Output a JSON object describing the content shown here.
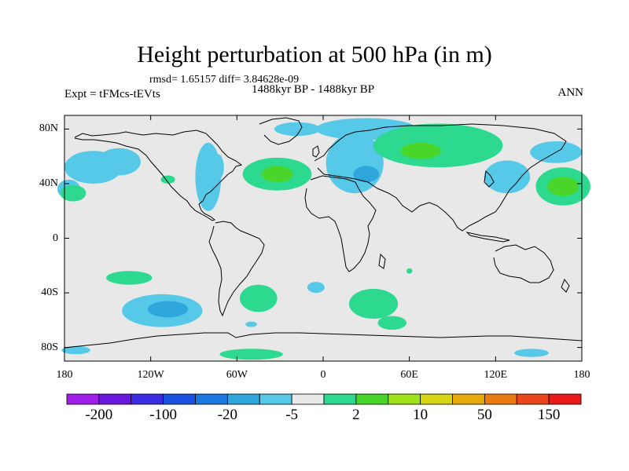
{
  "figure": {
    "title": "Height perturbation at 500 hPa (in m)",
    "stats": "rmsd= 1.65157 diff= 3.84628e-09",
    "left_label": "Expt = tFMcs-tEVts",
    "center_label": "1488kyr BP - 1488kyr BP",
    "right_label": "ANN"
  },
  "map": {
    "projection": "cylindrical-equidistant",
    "lon_range": [
      -180,
      180
    ],
    "lat_range": [
      -90,
      90
    ],
    "background_color": "#e8e8e8",
    "lat_ticks": [
      {
        "value": 80,
        "label": "80N"
      },
      {
        "value": 40,
        "label": "40N"
      },
      {
        "value": 0,
        "label": "0"
      },
      {
        "value": -40,
        "label": "40S"
      },
      {
        "value": -80,
        "label": "80S"
      }
    ],
    "lon_ticks": [
      {
        "value": -180,
        "label": "180"
      },
      {
        "value": -120,
        "label": "120W"
      },
      {
        "value": -60,
        "label": "60W"
      },
      {
        "value": 0,
        "label": "0"
      },
      {
        "value": 60,
        "label": "60E"
      },
      {
        "value": 120,
        "label": "120E"
      },
      {
        "value": 180,
        "label": "180"
      }
    ],
    "anomalies": [
      {
        "name": "north-pacific-low",
        "lon": -160,
        "lat": 52,
        "rlon": 20,
        "rlat": 12,
        "color": "#56c8e8"
      },
      {
        "name": "north-pacific-low-east",
        "lon": -142,
        "lat": 56,
        "rlon": 15,
        "rlat": 10,
        "color": "#56c8e8"
      },
      {
        "name": "pacific-west-edge-low",
        "lon": -177,
        "lat": 36,
        "rlon": 8,
        "rlat": 7,
        "color": "#56c8e8"
      },
      {
        "name": "pacific-west-edge-high",
        "lon": -174,
        "lat": 33,
        "rlon": 9,
        "rlat": 6,
        "color": "#2dd88f"
      },
      {
        "name": "northeast-pacific-high",
        "lon": -108,
        "lat": 43,
        "rlon": 5,
        "rlat": 3,
        "color": "#2dd88f"
      },
      {
        "name": "north-america-low",
        "lon": -80,
        "lat": 45,
        "rlon": 9,
        "rlat": 25,
        "color": "#56c8e8"
      },
      {
        "name": "canada-low-east",
        "lon": -74,
        "lat": 52,
        "rlon": 5,
        "rlat": 10,
        "color": "#56c8e8"
      },
      {
        "name": "north-atlantic-high",
        "lon": -32,
        "lat": 47,
        "rlon": 24,
        "rlat": 12,
        "color": "#2dd88f"
      },
      {
        "name": "north-atlantic-high-core",
        "lon": -32,
        "lat": 47,
        "rlon": 11,
        "rlat": 6,
        "color": "#4ad52a"
      },
      {
        "name": "greenland-low",
        "lon": -18,
        "lat": 80,
        "rlon": 16,
        "rlat": 5,
        "color": "#56c8e8"
      },
      {
        "name": "arctic-low",
        "lon": 30,
        "lat": 80,
        "rlon": 35,
        "rlat": 8,
        "color": "#56c8e8"
      },
      {
        "name": "europe-low",
        "lon": 22,
        "lat": 55,
        "rlon": 20,
        "rlat": 22,
        "color": "#56c8e8"
      },
      {
        "name": "europe-low-core",
        "lon": 30,
        "lat": 47,
        "rlon": 9,
        "rlat": 6,
        "color": "#2ea6dc"
      },
      {
        "name": "siberia-high",
        "lon": 80,
        "lat": 68,
        "rlon": 45,
        "rlat": 16,
        "color": "#2dd88f"
      },
      {
        "name": "siberia-high-core",
        "lon": 68,
        "lat": 64,
        "rlon": 14,
        "rlat": 6,
        "color": "#4ad52a"
      },
      {
        "name": "east-asia-low",
        "lon": 128,
        "lat": 45,
        "rlon": 16,
        "rlat": 12,
        "color": "#56c8e8"
      },
      {
        "name": "arctic-siberia-low",
        "lon": 162,
        "lat": 63,
        "rlon": 18,
        "rlat": 8,
        "color": "#56c8e8"
      },
      {
        "name": "west-pacific-high",
        "lon": 167,
        "lat": 38,
        "rlon": 19,
        "rlat": 14,
        "color": "#2dd88f"
      },
      {
        "name": "west-pacific-high-core",
        "lon": 167,
        "lat": 38,
        "rlon": 11,
        "rlat": 7,
        "color": "#4ad52a"
      },
      {
        "name": "south-pacific-high",
        "lon": -135,
        "lat": -29,
        "rlon": 16,
        "rlat": 5,
        "color": "#2dd88f"
      },
      {
        "name": "south-pacific-low",
        "lon": -112,
        "lat": -53,
        "rlon": 28,
        "rlat": 12,
        "color": "#56c8e8"
      },
      {
        "name": "south-pacific-low-core",
        "lon": -108,
        "lat": -52,
        "rlon": 14,
        "rlat": 6,
        "color": "#2ea6dc"
      },
      {
        "name": "south-atlantic-high",
        "lon": -45,
        "lat": -44,
        "rlon": 13,
        "rlat": 10,
        "color": "#2dd88f"
      },
      {
        "name": "falklands-low",
        "lon": -50,
        "lat": -63,
        "rlon": 4,
        "rlat": 2,
        "color": "#56c8e8"
      },
      {
        "name": "south-atlantic-low",
        "lon": -5,
        "lat": -36,
        "rlon": 6,
        "rlat": 4,
        "color": "#56c8e8"
      },
      {
        "name": "southern-indian-high",
        "lon": 35,
        "lat": -48,
        "rlon": 17,
        "rlat": 11,
        "color": "#2dd88f"
      },
      {
        "name": "southern-indian-high-tail",
        "lon": 48,
        "lat": -62,
        "rlon": 10,
        "rlat": 5,
        "color": "#2dd88f"
      },
      {
        "name": "madagascar-high",
        "lon": 60,
        "lat": -24,
        "rlon": 2,
        "rlat": 2,
        "color": "#2dd88f"
      },
      {
        "name": "antarctic-pacific-low",
        "lon": -172,
        "lat": -82,
        "rlon": 10,
        "rlat": 3,
        "color": "#56c8e8"
      },
      {
        "name": "antarctic-high",
        "lon": -50,
        "lat": -85,
        "rlon": 22,
        "rlat": 4,
        "color": "#2dd88f"
      },
      {
        "name": "antarctic-west-pacific-low",
        "lon": 145,
        "lat": -84,
        "rlon": 12,
        "rlat": 3,
        "color": "#56c8e8"
      }
    ]
  },
  "colorbar": {
    "colors": [
      "#9f1fe8",
      "#6b17dd",
      "#3b2be0",
      "#1a52e0",
      "#1a78de",
      "#2ea6dc",
      "#56c8e8",
      "#e8e8e8",
      "#2dd88f",
      "#4ad52a",
      "#9fe21b",
      "#d7d515",
      "#e6aa0f",
      "#e87a0f",
      "#e8461a",
      "#e81a1a"
    ],
    "labels": [
      "-200",
      "-100",
      "-20",
      "-5",
      "2",
      "10",
      "50",
      "150"
    ]
  }
}
